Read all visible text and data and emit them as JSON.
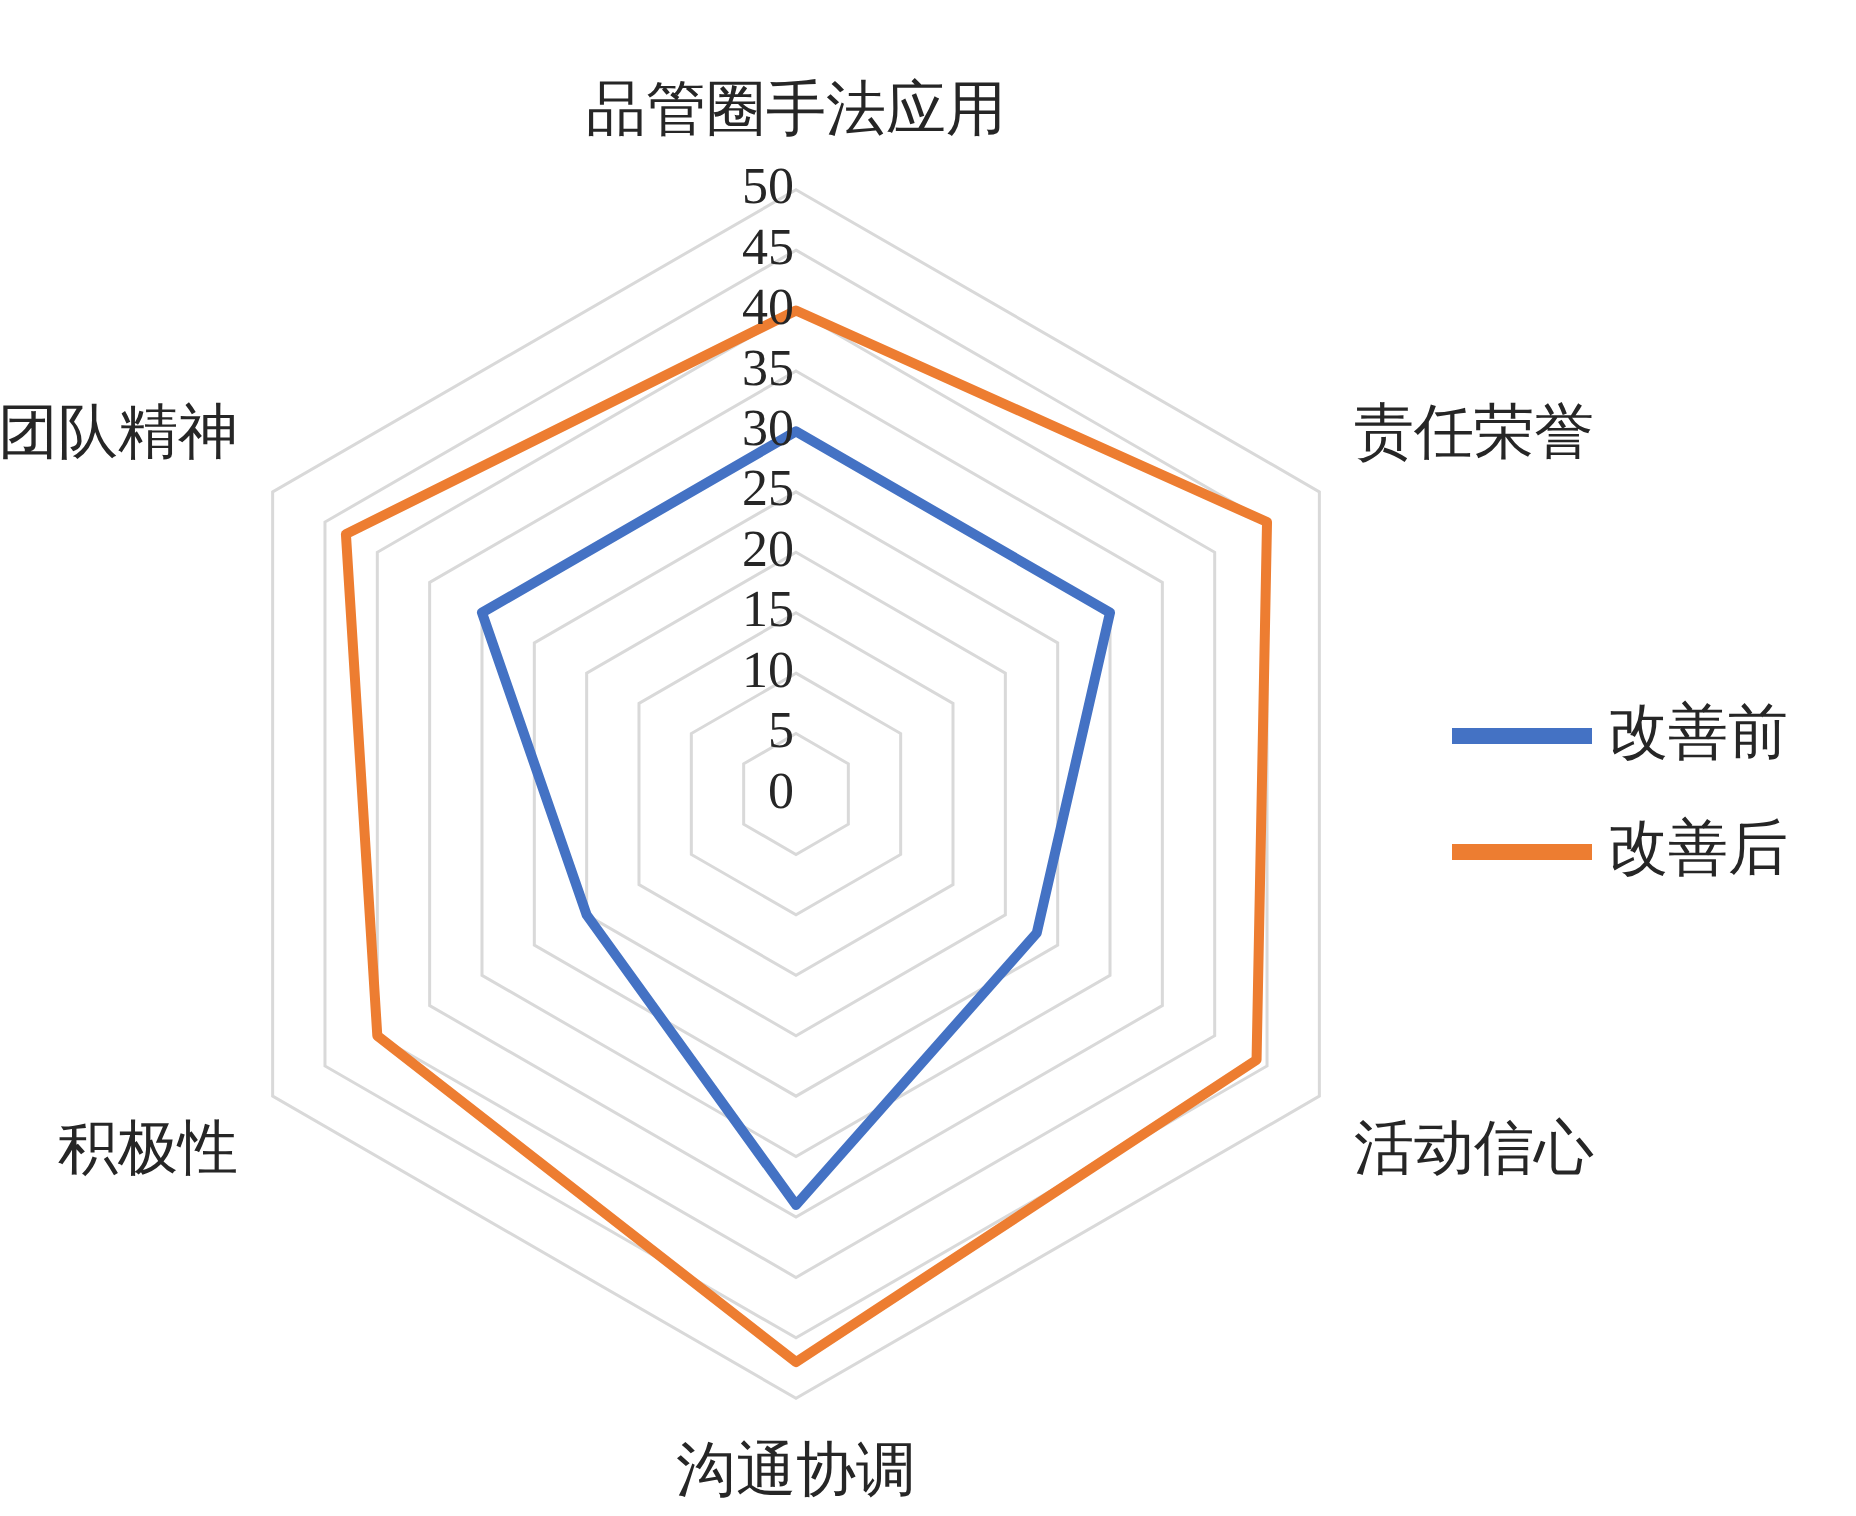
{
  "chart_data": {
    "type": "radar",
    "categories": [
      "品管圈手法应用",
      "责任荣誉",
      "活动信心",
      "沟通协调",
      "积极性",
      "团队精神"
    ],
    "series": [
      {
        "name": "改善前",
        "color": "#4472c4",
        "values": [
          30,
          30,
          23,
          34,
          20,
          30
        ]
      },
      {
        "name": "改善后",
        "color": "#ed7d31",
        "values": [
          40,
          45,
          44,
          47,
          40,
          43
        ]
      }
    ],
    "ylim": [
      0,
      50
    ],
    "yticks": [
      0,
      5,
      10,
      15,
      20,
      25,
      30,
      35,
      40,
      45,
      50
    ],
    "grid": true,
    "legend": "right"
  }
}
